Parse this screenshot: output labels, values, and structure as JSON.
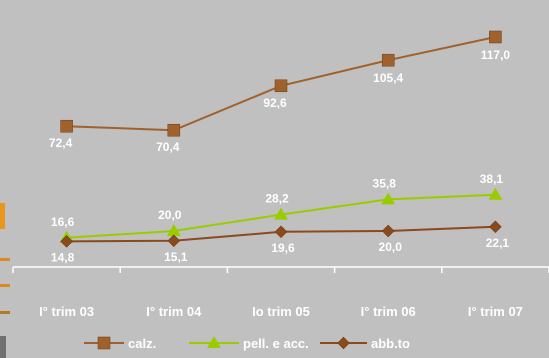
{
  "chart_data": {
    "type": "line",
    "categories": [
      "I° trim 03",
      "I° trim 04",
      "Io trim 05",
      "I° trim 06",
      "I° trim 07"
    ],
    "series": [
      {
        "name": "calz.",
        "values": [
          72.4,
          70.4,
          92.6,
          105.4,
          117.0
        ],
        "labels": [
          "72,4",
          "70,4",
          "92,6",
          "105,4",
          "117,0"
        ],
        "color": "#A0622D",
        "marker": "square"
      },
      {
        "name": "pell. e acc.",
        "values": [
          16.6,
          20.0,
          28.2,
          35.8,
          38.1
        ],
        "labels": [
          "16,6",
          "20,0",
          "28,2",
          "35,8",
          "38,1"
        ],
        "color": "#99CC00",
        "marker": "triangle"
      },
      {
        "name": "abb.to",
        "values": [
          14.8,
          15.1,
          19.6,
          20.0,
          22.1
        ],
        "labels": [
          "14,8",
          "15,1",
          "19,6",
          "20,0",
          "22,1"
        ],
        "color": "#8B4A1E",
        "marker": "diamond"
      }
    ],
    "ylim": [
      0,
      135
    ],
    "grid": false,
    "legend_position": "bottom",
    "background": "#C0C0C0",
    "side_accent_colors": [
      "#E8961E",
      "#D98C1E",
      "#B07A28",
      "#707070"
    ]
  }
}
